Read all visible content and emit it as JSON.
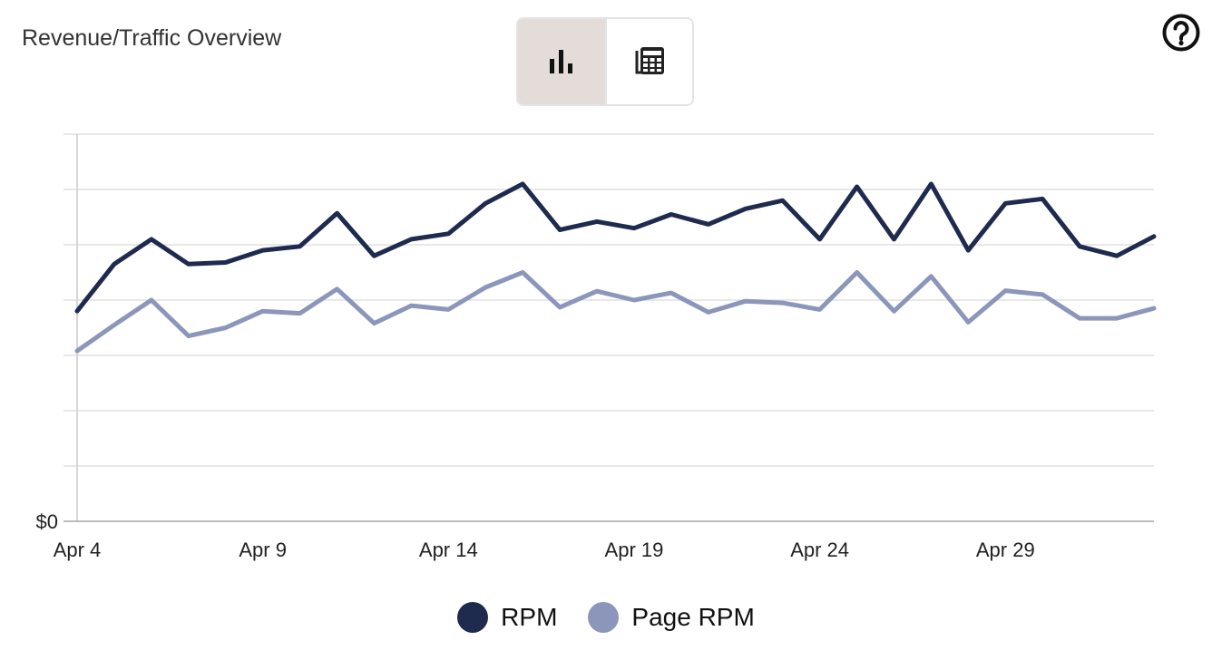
{
  "header": {
    "title": "Revenue/Traffic Overview",
    "chart_view_icon": "bar-chart-icon",
    "table_view_icon": "table-icon",
    "help_icon": "question-circle-icon"
  },
  "colors": {
    "rpm": "#1f2a4f",
    "page_rpm": "#8b96ba",
    "grid": "#e0e0e0",
    "axis": "#cccccc",
    "toggle_active": "#e3dcd8"
  },
  "chart_data": {
    "type": "line",
    "title": "Revenue/Traffic Overview",
    "xlabel": "",
    "ylabel": "",
    "x": [
      "Apr 4",
      "Apr 5",
      "Apr 6",
      "Apr 7",
      "Apr 8",
      "Apr 9",
      "Apr 10",
      "Apr 11",
      "Apr 12",
      "Apr 13",
      "Apr 14",
      "Apr 15",
      "Apr 16",
      "Apr 17",
      "Apr 18",
      "Apr 19",
      "Apr 20",
      "Apr 21",
      "Apr 22",
      "Apr 23",
      "Apr 24",
      "Apr 25",
      "Apr 26",
      "Apr 27",
      "Apr 28",
      "Apr 29",
      "Apr 30",
      "May 1",
      "May 2",
      "May 3"
    ],
    "x_tick_labels": [
      "Apr 4",
      "Apr 9",
      "Apr 14",
      "Apr 19",
      "Apr 24",
      "Apr 29"
    ],
    "y_tick_labels": [
      "$0"
    ],
    "ylim": [
      0,
      7
    ],
    "grid": true,
    "legend_position": "bottom-center",
    "series": [
      {
        "name": "RPM",
        "values": [
          3.8,
          4.65,
          5.1,
          4.65,
          4.68,
          4.9,
          4.97,
          5.57,
          4.8,
          5.1,
          5.2,
          5.75,
          6.1,
          5.27,
          5.42,
          5.3,
          5.55,
          5.37,
          5.65,
          5.8,
          5.1,
          6.05,
          5.1,
          6.1,
          4.9,
          5.75,
          5.83,
          4.97,
          4.8,
          5.15
        ]
      },
      {
        "name": "Page RPM",
        "values": [
          3.08,
          3.55,
          4.0,
          3.35,
          3.5,
          3.8,
          3.76,
          4.2,
          3.58,
          3.9,
          3.83,
          4.23,
          4.5,
          3.87,
          4.16,
          4.0,
          4.13,
          3.78,
          3.98,
          3.95,
          3.83,
          4.5,
          3.8,
          4.43,
          3.6,
          4.17,
          4.1,
          3.67,
          3.67,
          3.85
        ]
      }
    ]
  }
}
